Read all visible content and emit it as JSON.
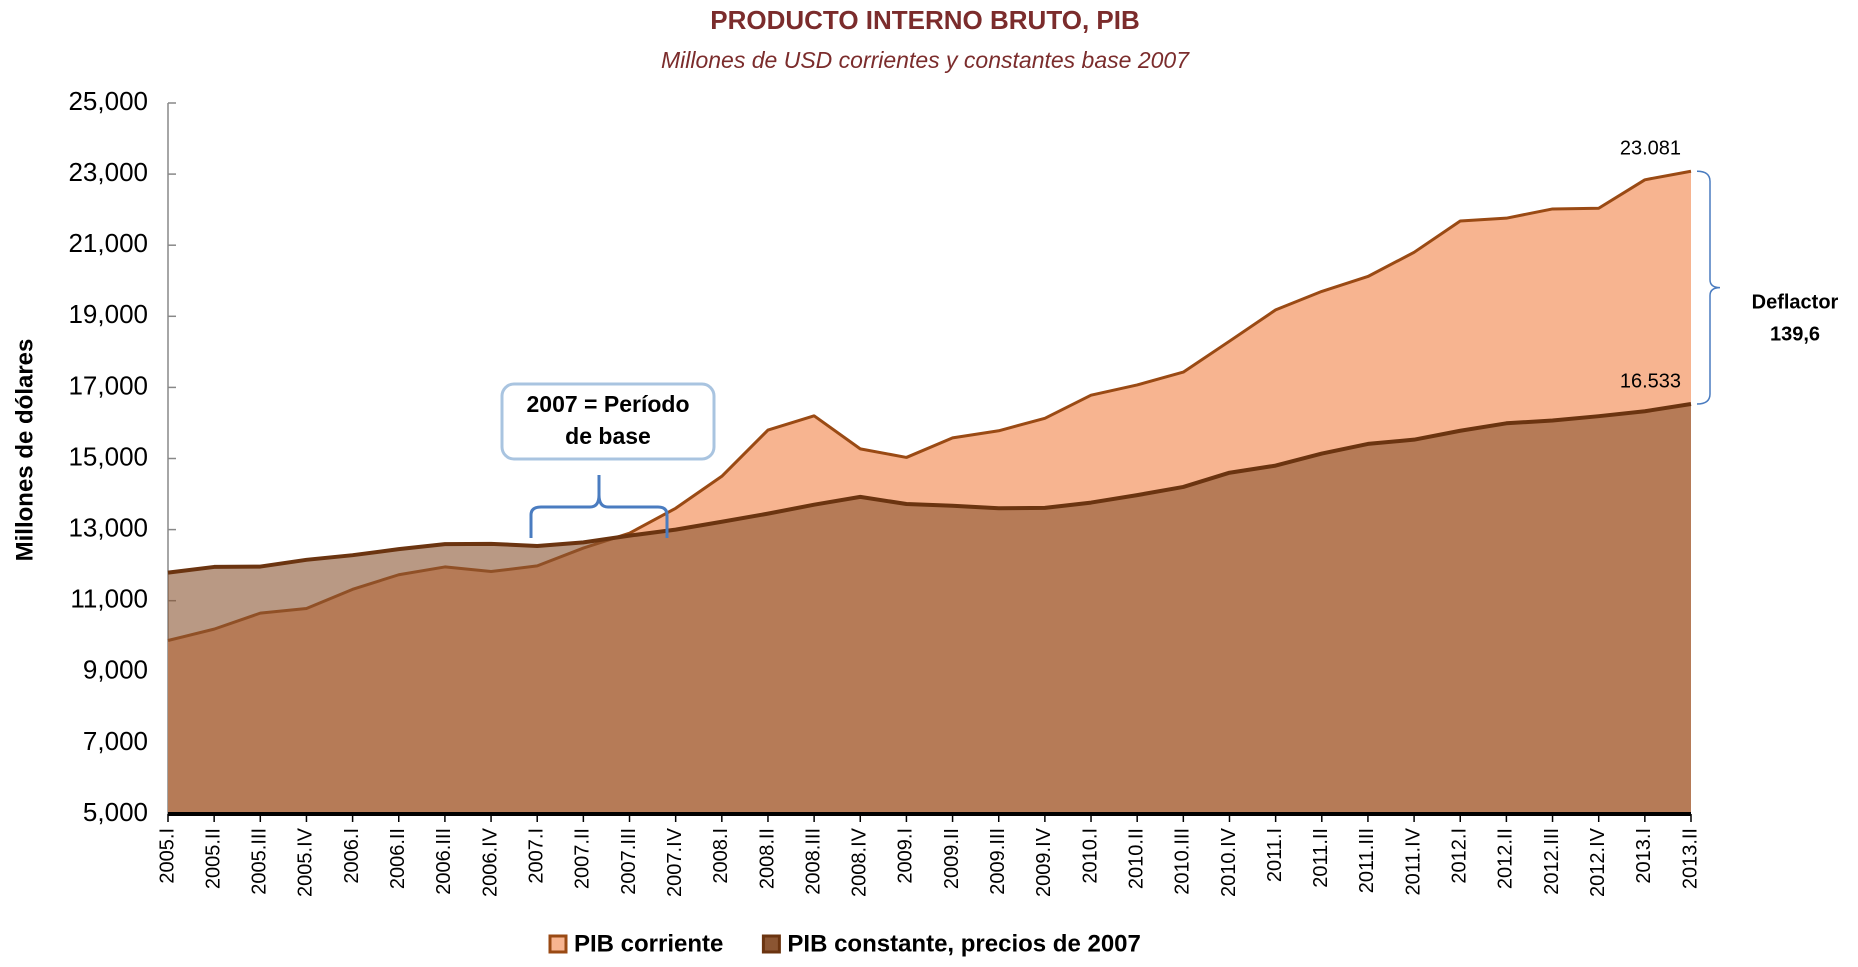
{
  "chart_data": {
    "type": "area",
    "title": "PRODUCTO INTERNO BRUTO, PIB",
    "subtitle": "Millones de USD corrientes y constantes base 2007",
    "y_label": "Millones de dólares",
    "categories": [
      "2005.I",
      "2005.II",
      "2005.III",
      "2005.IV",
      "2006.I",
      "2006.II",
      "2006.III",
      "2006.IV",
      "2007.I",
      "2007.II",
      "2007.III",
      "2007.IV",
      "2008.I",
      "2008.II",
      "2008.III",
      "2008.IV",
      "2009.I",
      "2009.II",
      "2009.III",
      "2009.IV",
      "2010.I",
      "2010.II",
      "2010.III",
      "2010.IV",
      "2011.I",
      "2011.II",
      "2011.III",
      "2011.IV",
      "2012.I",
      "2012.II",
      "2012.III",
      "2012.IV",
      "2013.I",
      "2013.II"
    ],
    "series": [
      {
        "name": "PIB corriente",
        "color": "#F7B490",
        "line_color": "#9A4A14",
        "values": [
          9880,
          10200,
          10650,
          10780,
          11320,
          11730,
          11950,
          11820,
          11980,
          12480,
          12900,
          13600,
          14500,
          15800,
          16200,
          15270,
          15030,
          15580,
          15780,
          16130,
          16780,
          17070,
          17430,
          18300,
          19180,
          19700,
          20120,
          20800,
          21680,
          21760,
          22020,
          22040,
          22840,
          23081
        ],
        "value_labels": [
          null,
          null,
          null,
          null,
          null,
          null,
          null,
          null,
          null,
          null,
          null,
          null,
          null,
          null,
          null,
          null,
          null,
          null,
          null,
          null,
          null,
          null,
          null,
          null,
          null,
          null,
          null,
          null,
          null,
          null,
          null,
          null,
          null,
          "23.081"
        ]
      },
      {
        "name": "PIB constante, precios de 2007",
        "color": "#8B5532",
        "line_color": "#6B3410",
        "values": [
          11790,
          11950,
          11960,
          12150,
          12280,
          12450,
          12590,
          12600,
          12540,
          12640,
          12830,
          13000,
          13220,
          13450,
          13700,
          13920,
          13720,
          13670,
          13600,
          13610,
          13760,
          13970,
          14200,
          14600,
          14800,
          15140,
          15410,
          15530,
          15780,
          15990,
          16070,
          16190,
          16330,
          16533
        ],
        "value_labels": [
          null,
          null,
          null,
          null,
          null,
          null,
          null,
          null,
          null,
          null,
          null,
          null,
          null,
          null,
          null,
          null,
          null,
          null,
          null,
          null,
          null,
          null,
          null,
          null,
          null,
          null,
          null,
          null,
          null,
          null,
          null,
          null,
          null,
          "16.533"
        ]
      }
    ],
    "ylim": [
      5000,
      25000
    ],
    "yticks": [
      {
        "value": 5000,
        "label": "5,000"
      },
      {
        "value": 7000,
        "label": "7,000"
      },
      {
        "value": 9000,
        "label": "9,000"
      },
      {
        "value": 11000,
        "label": "11,000"
      },
      {
        "value": 13000,
        "label": "13,000"
      },
      {
        "value": 15000,
        "label": "15,000"
      },
      {
        "value": 17000,
        "label": "17,000"
      },
      {
        "value": 19000,
        "label": "19,000"
      },
      {
        "value": 21000,
        "label": "21,000"
      },
      {
        "value": 23000,
        "label": "23,000"
      },
      {
        "value": 25000,
        "label": "25,000"
      }
    ],
    "annotations": {
      "deflator": [
        "Deflactor",
        "139,6"
      ],
      "base_period": [
        "2007 = Período",
        "de base"
      ]
    },
    "legend": "bottom"
  }
}
